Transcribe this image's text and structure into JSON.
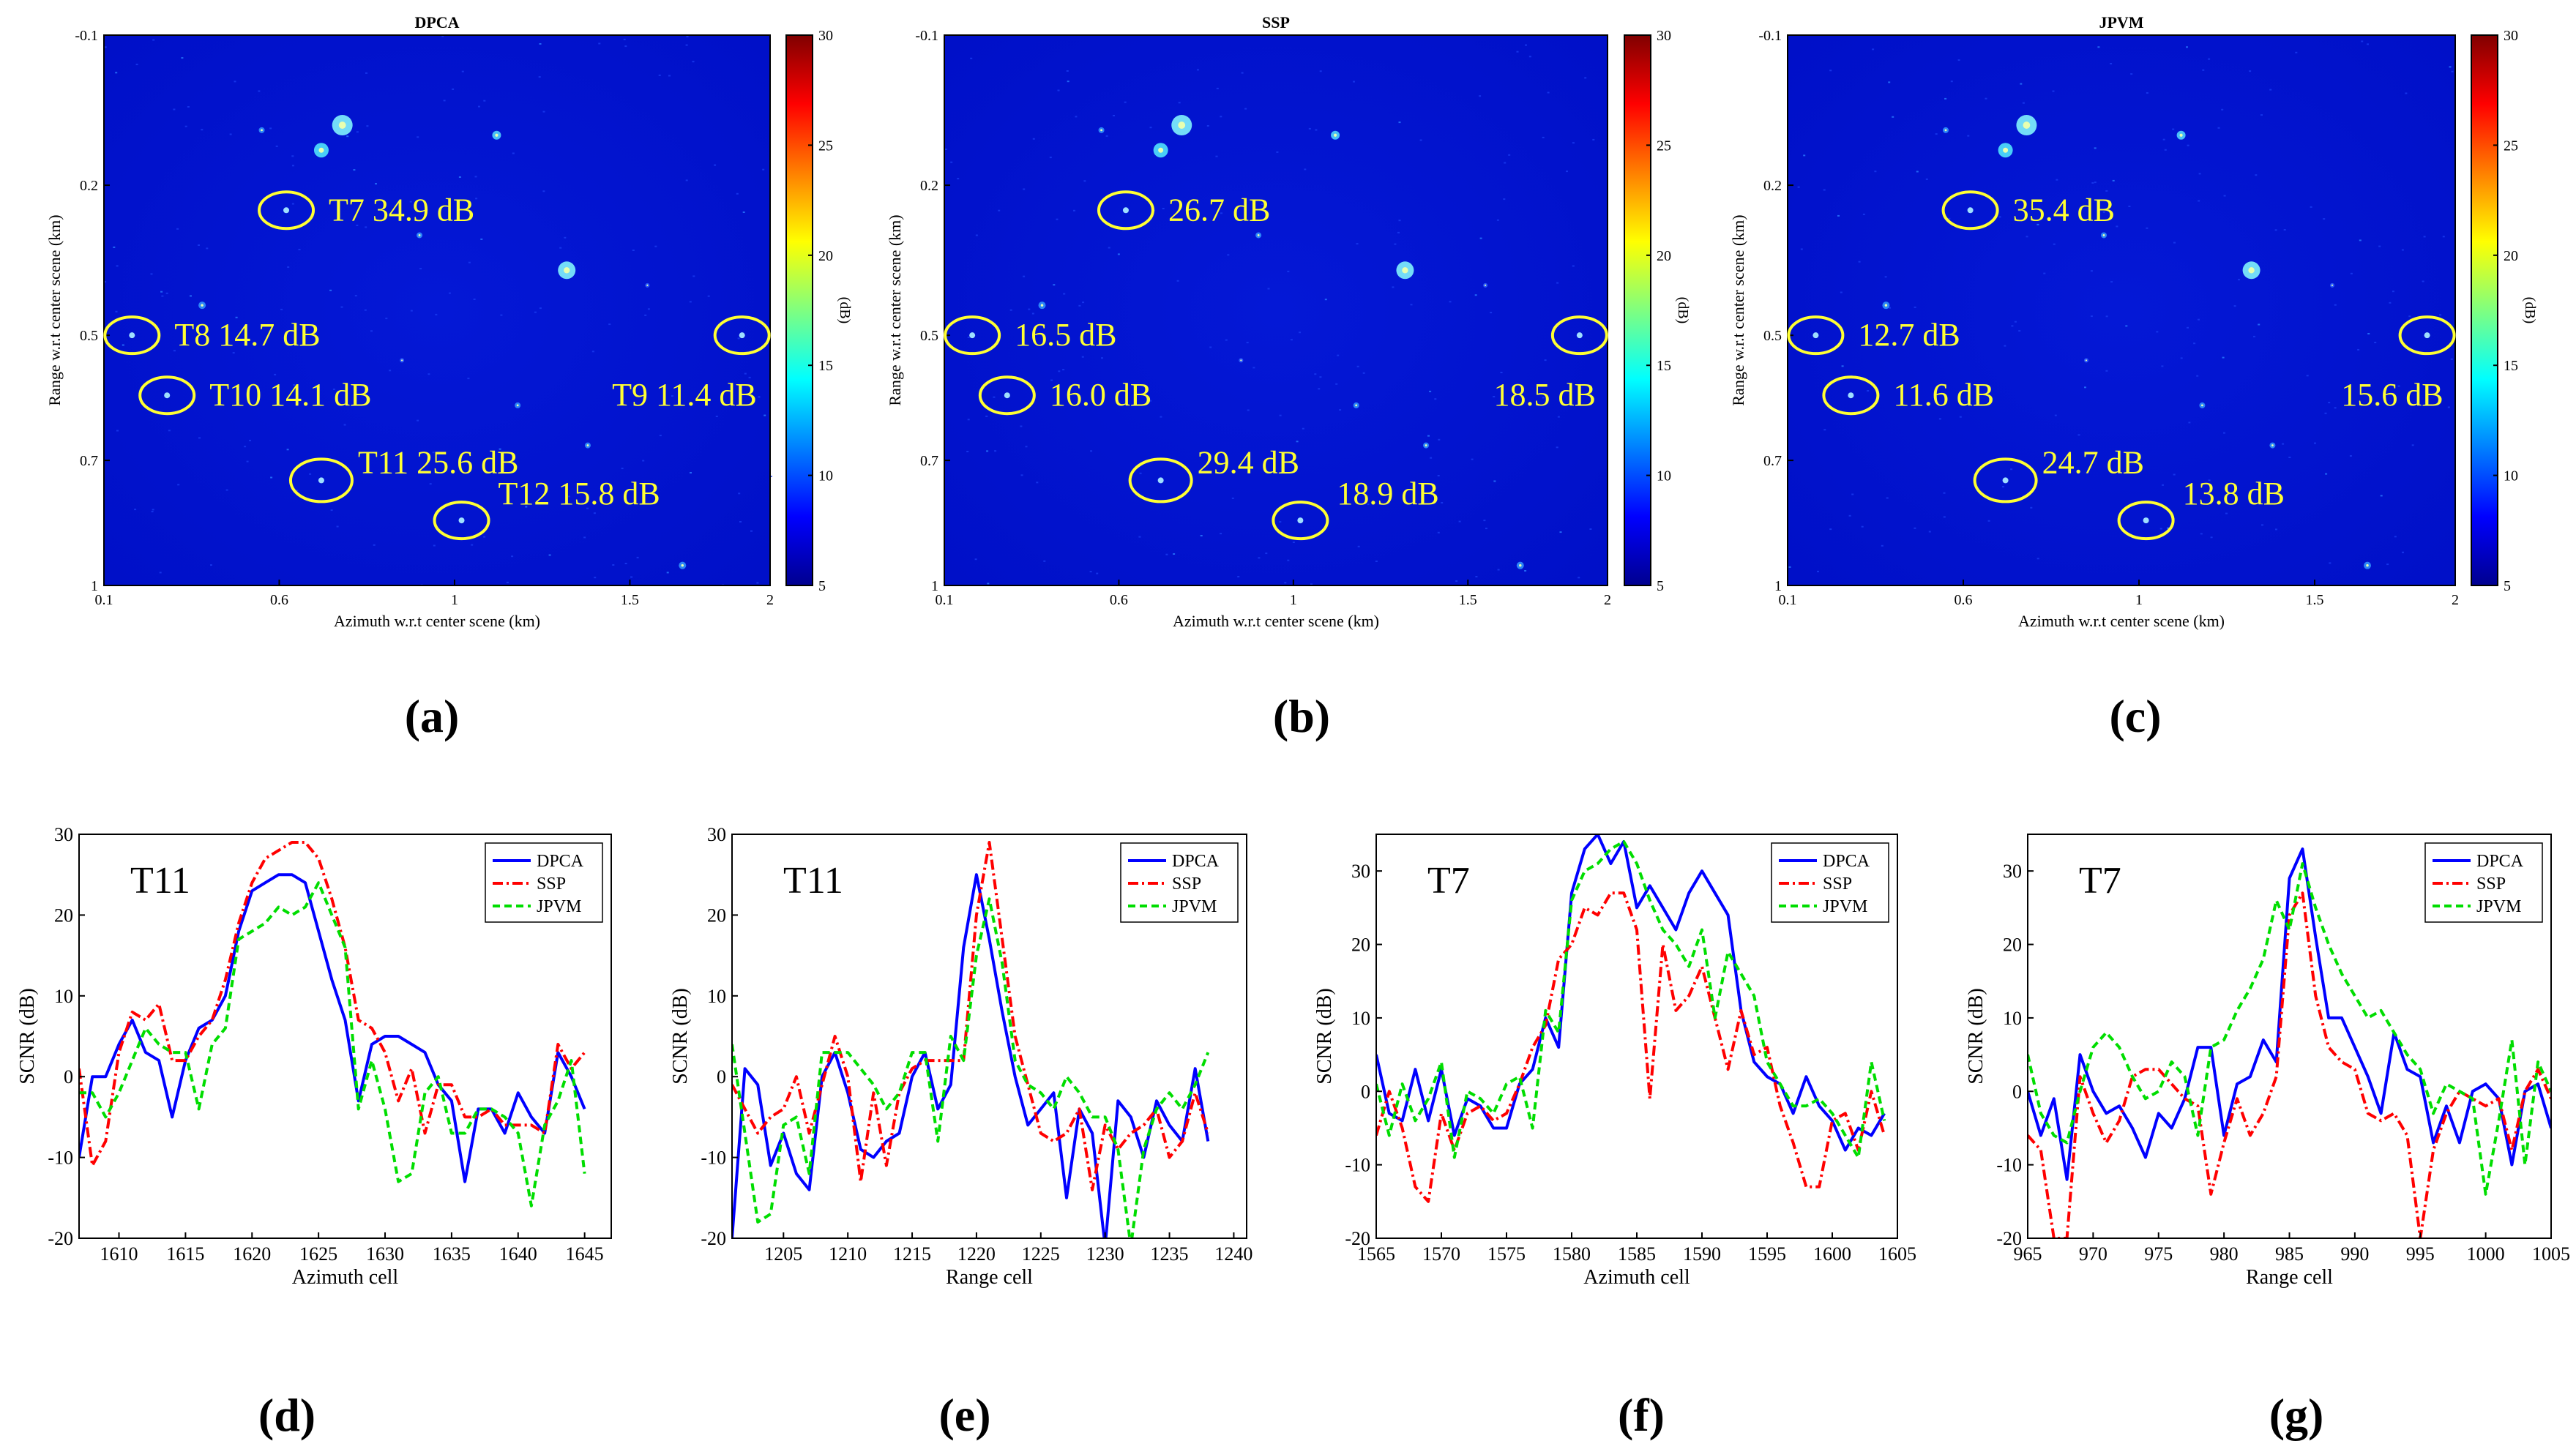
{
  "figure": {
    "panel_labels": [
      "(a)",
      "(b)",
      "(c)",
      "(d)",
      "(e)",
      "(f)",
      "(g)"
    ]
  },
  "chart_data": [
    {
      "id": "a",
      "type": "heatmap",
      "title": "DPCA",
      "xlabel": "Azimuth w.r.t center scene (km)",
      "ylabel": "Range w.r.t center scene (km)",
      "xlim": [
        0.1,
        2
      ],
      "ylim": [
        -0.1,
        1
      ],
      "xticks": [
        "0.1",
        "0.6",
        "1",
        "1.5",
        "2"
      ],
      "xtick_values": [
        0.1,
        0.6,
        1.1,
        1.6,
        2.0
      ],
      "yticks": [
        "-0.1",
        "0.2",
        "0.5",
        "0.7",
        "1"
      ],
      "ytick_values": [
        -0.1,
        0.2,
        0.5,
        0.75,
        1.0
      ],
      "colorbar": {
        "label": "(dB)",
        "min": 5,
        "max": 30,
        "ticks": [
          "5",
          "10",
          "15",
          "20",
          "25",
          "30"
        ]
      },
      "annotations": [
        {
          "target": "T7",
          "text": "T7 34.9 dB",
          "az": 0.62,
          "rg": 0.25
        },
        {
          "target": "T8",
          "text": "T8 14.7 dB",
          "az": 0.18,
          "rg": 0.5
        },
        {
          "target": "T10",
          "text": "T10 14.1 dB",
          "az": 0.28,
          "rg": 0.62
        },
        {
          "target": "T9",
          "text": "T9 11.4 dB",
          "az": 1.92,
          "rg": 0.5
        },
        {
          "target": "T11",
          "text": "T11 25.6 dB",
          "az": 0.72,
          "rg": 0.79
        },
        {
          "target": "T12",
          "text": "T12 15.8 dB",
          "az": 1.12,
          "rg": 0.87
        }
      ]
    },
    {
      "id": "b",
      "type": "heatmap",
      "title": "SSP",
      "xlabel": "Azimuth w.r.t center scene (km)",
      "ylabel": "Range w.r.t center scene (km)",
      "xlim": [
        0.1,
        2
      ],
      "ylim": [
        -0.1,
        1
      ],
      "xticks": [
        "0.1",
        "0.6",
        "1",
        "1.5",
        "2"
      ],
      "xtick_values": [
        0.1,
        0.6,
        1.1,
        1.6,
        2.0
      ],
      "yticks": [
        "-0.1",
        "0.2",
        "0.5",
        "0.7",
        "1"
      ],
      "ytick_values": [
        -0.1,
        0.2,
        0.5,
        0.75,
        1.0
      ],
      "colorbar": {
        "label": "(dB)",
        "min": 5,
        "max": 30,
        "ticks": [
          "5",
          "10",
          "15",
          "20",
          "25",
          "30"
        ]
      },
      "annotations": [
        {
          "target": "T7",
          "text": "26.7 dB",
          "az": 0.62,
          "rg": 0.25
        },
        {
          "target": "T8",
          "text": "16.5 dB",
          "az": 0.18,
          "rg": 0.5
        },
        {
          "target": "T10",
          "text": "16.0 dB",
          "az": 0.28,
          "rg": 0.62
        },
        {
          "target": "T9",
          "text": "18.5 dB",
          "az": 1.92,
          "rg": 0.5
        },
        {
          "target": "T11",
          "text": "29.4 dB",
          "az": 0.72,
          "rg": 0.79
        },
        {
          "target": "T12",
          "text": "18.9 dB",
          "az": 1.12,
          "rg": 0.87
        }
      ]
    },
    {
      "id": "c",
      "type": "heatmap",
      "title": "JPVM",
      "xlabel": "Azimuth w.r.t center scene (km)",
      "ylabel": "Range w.r.t center scene (km)",
      "xlim": [
        0.1,
        2
      ],
      "ylim": [
        -0.1,
        1
      ],
      "xticks": [
        "0.1",
        "0.6",
        "1",
        "1.5",
        "2"
      ],
      "xtick_values": [
        0.1,
        0.6,
        1.1,
        1.6,
        2.0
      ],
      "yticks": [
        "-0.1",
        "0.2",
        "0.5",
        "0.7",
        "1"
      ],
      "ytick_values": [
        -0.1,
        0.2,
        0.5,
        0.75,
        1.0
      ],
      "colorbar": {
        "label": "(dB)",
        "min": 5,
        "max": 30,
        "ticks": [
          "5",
          "10",
          "15",
          "20",
          "25",
          "30"
        ]
      },
      "annotations": [
        {
          "target": "T7",
          "text": "35.4 dB",
          "az": 0.62,
          "rg": 0.25
        },
        {
          "target": "T8",
          "text": "12.7 dB",
          "az": 0.18,
          "rg": 0.5
        },
        {
          "target": "T10",
          "text": "11.6 dB",
          "az": 0.28,
          "rg": 0.62
        },
        {
          "target": "T9",
          "text": "15.6 dB",
          "az": 1.92,
          "rg": 0.5
        },
        {
          "target": "T11",
          "text": "24.7 dB",
          "az": 0.72,
          "rg": 0.79
        },
        {
          "target": "T12",
          "text": "13.8 dB",
          "az": 1.12,
          "rg": 0.87
        }
      ]
    },
    {
      "id": "d",
      "type": "line",
      "annotation": "T11",
      "xlabel": "Azimuth cell",
      "ylabel": "SCNR (dB)",
      "xlim": [
        1607,
        1647
      ],
      "ylim": [
        -20,
        30
      ],
      "xticks": [
        1610,
        1615,
        1620,
        1625,
        1630,
        1635,
        1640,
        1645
      ],
      "yticks": [
        -20,
        -10,
        0,
        10,
        20,
        30
      ],
      "x_start": 1607,
      "series": [
        {
          "name": "DPCA",
          "color": "#0000ff",
          "dash": "",
          "values": [
            -10,
            0,
            0,
            4,
            7,
            3,
            2,
            -5,
            2,
            6,
            7,
            10,
            18,
            23,
            24,
            25,
            25,
            24,
            18,
            12,
            7,
            -3,
            4,
            5,
            5,
            4,
            3,
            -1,
            -3,
            -13,
            -4,
            -4,
            -7,
            -2,
            -5,
            -7,
            3,
            0,
            -4
          ]
        },
        {
          "name": "SSP",
          "color": "#ff0000",
          "dash": "14,5,3,5",
          "values": [
            1,
            -11,
            -8,
            3,
            8,
            7,
            9,
            2,
            2,
            5,
            7,
            12,
            19,
            24,
            27,
            28,
            29,
            29,
            27,
            22,
            16,
            7,
            6,
            3,
            -3,
            1,
            -7,
            -1,
            -1,
            -5,
            -5,
            -4,
            -6,
            -6,
            -6,
            -7,
            4,
            1,
            3
          ]
        },
        {
          "name": "JPVM",
          "color": "#00dd00",
          "dash": "10,6",
          "values": [
            -2,
            -2,
            -5,
            -2,
            2,
            6,
            4,
            3,
            3,
            -4,
            4,
            6,
            17,
            18,
            19,
            21,
            20,
            21,
            24,
            20,
            16,
            -4,
            2,
            -4,
            -13,
            -12,
            -2,
            0,
            -7,
            -7,
            -4,
            -4,
            -5,
            -7,
            -16,
            -6,
            -3,
            2,
            -12
          ]
        }
      ],
      "legend": [
        "DPCA",
        "SSP",
        "JPVM"
      ]
    },
    {
      "id": "e",
      "type": "line",
      "annotation": "T11",
      "xlabel": "Range cell",
      "ylabel": "SCNR (dB)",
      "xlim": [
        1201,
        1241
      ],
      "ylim": [
        -20,
        30
      ],
      "xticks": [
        1205,
        1210,
        1215,
        1220,
        1225,
        1230,
        1235,
        1240
      ],
      "yticks": [
        -20,
        -10,
        0,
        10,
        20,
        30
      ],
      "x_start": 1201,
      "series": [
        {
          "name": "DPCA",
          "color": "#0000ff",
          "dash": "",
          "values": [
            -20,
            1,
            -1,
            -11,
            -7,
            -12,
            -14,
            0,
            3,
            -2,
            -9,
            -10,
            -8,
            -7,
            0,
            3,
            -4,
            -1,
            16,
            25,
            17,
            8,
            0,
            -6,
            -4,
            -2,
            -15,
            -4,
            -7,
            -21,
            -3,
            -5,
            -10,
            -3,
            -6,
            -8,
            1,
            -8
          ]
        },
        {
          "name": "SSP",
          "color": "#ff0000",
          "dash": "14,5,3,5",
          "values": [
            -1,
            -4,
            -7,
            -5,
            -4,
            0,
            -7,
            -1,
            5,
            0,
            -13,
            -2,
            -11,
            -2,
            1,
            2,
            2,
            2,
            2,
            20,
            29,
            17,
            5,
            -1,
            -7,
            -8,
            -7,
            -4,
            -14,
            -6,
            -9,
            -7,
            -6,
            -4,
            -10,
            -8,
            -2,
            -7
          ]
        },
        {
          "name": "JPVM",
          "color": "#00dd00",
          "dash": "10,6",
          "values": [
            4,
            -7,
            -18,
            -17,
            -6,
            -5,
            -12,
            3,
            3,
            3,
            1,
            -1,
            -4,
            -2,
            3,
            3,
            -8,
            5,
            2,
            15,
            22,
            14,
            2,
            -1,
            -2,
            -4,
            0,
            -2,
            -5,
            -5,
            -9,
            -21,
            -9,
            -4,
            -2,
            -4,
            -1,
            3
          ]
        }
      ],
      "legend": [
        "DPCA",
        "SSP",
        "JPVM"
      ]
    },
    {
      "id": "f",
      "type": "line",
      "annotation": "T7",
      "xlabel": "Azimuth cell",
      "ylabel": "SCNR (dB)",
      "xlim": [
        1565,
        1605
      ],
      "ylim": [
        -20,
        35
      ],
      "xticks": [
        1565,
        1570,
        1575,
        1580,
        1585,
        1590,
        1595,
        1600,
        1605
      ],
      "yticks": [
        -20,
        -10,
        0,
        10,
        20,
        30
      ],
      "x_start": 1565,
      "series": [
        {
          "name": "DPCA",
          "color": "#0000ff",
          "dash": "",
          "values": [
            5,
            -3,
            -4,
            3,
            -4,
            3,
            -6,
            -1,
            -2,
            -5,
            -5,
            1,
            3,
            10,
            6,
            27,
            33,
            35,
            31,
            34,
            25,
            28,
            25,
            22,
            27,
            30,
            27,
            24,
            11,
            4,
            2,
            1,
            -3,
            2,
            -2,
            -4,
            -8,
            -5,
            -6,
            -3
          ]
        },
        {
          "name": "SSP",
          "color": "#ff0000",
          "dash": "14,5,3,5",
          "values": [
            -6,
            0,
            -5,
            -13,
            -15,
            -3,
            -8,
            -3,
            -2,
            -4,
            -3,
            1,
            6,
            9,
            18,
            20,
            25,
            24,
            27,
            27,
            22,
            -1,
            20,
            11,
            13,
            17,
            10,
            3,
            11,
            5,
            6,
            -2,
            -7,
            -13,
            -13,
            -4,
            -3,
            -8,
            0,
            -6
          ]
        },
        {
          "name": "JPVM",
          "color": "#00dd00",
          "dash": "10,6",
          "values": [
            1,
            -6,
            1,
            -4,
            -1,
            4,
            -9,
            0,
            -1,
            -3,
            1,
            2,
            -5,
            11,
            8,
            26,
            30,
            31,
            33,
            34,
            31,
            26,
            22,
            20,
            17,
            22,
            10,
            19,
            16,
            13,
            4,
            1,
            -2,
            -2,
            -1,
            -3,
            -6,
            -9,
            4,
            -4
          ]
        }
      ],
      "legend": [
        "DPCA",
        "SSP",
        "JPVM"
      ]
    },
    {
      "id": "g",
      "type": "line",
      "annotation": "T7",
      "xlabel": "Range cell",
      "ylabel": "SCNR (dB)",
      "xlim": [
        965,
        1005
      ],
      "ylim": [
        -20,
        35
      ],
      "xticks": [
        965,
        970,
        975,
        980,
        985,
        990,
        995,
        1000,
        1005
      ],
      "yticks": [
        -20,
        -10,
        0,
        10,
        20,
        30
      ],
      "x_start": 965,
      "series": [
        {
          "name": "DPCA",
          "color": "#0000ff",
          "dash": "",
          "values": [
            0,
            -6,
            -1,
            -12,
            5,
            0,
            -3,
            -2,
            -5,
            -9,
            -3,
            -5,
            -1,
            6,
            6,
            -6,
            1,
            2,
            7,
            4,
            29,
            33,
            21,
            10,
            10,
            6,
            2,
            -3,
            8,
            3,
            2,
            -7,
            -2,
            -7,
            0,
            1,
            -1,
            -10,
            0,
            1,
            -5
          ]
        },
        {
          "name": "SSP",
          "color": "#ff0000",
          "dash": "14,5,3,5",
          "values": [
            -6,
            -8,
            -20,
            -20,
            2,
            -3,
            -7,
            -4,
            2,
            3,
            3,
            1,
            -1,
            -2,
            -14,
            -7,
            -1,
            -6,
            -3,
            2,
            24,
            27,
            13,
            6,
            4,
            3,
            -3,
            -4,
            -3,
            -6,
            -20,
            -8,
            -3,
            0,
            -1,
            -2,
            -1,
            -8,
            0,
            3,
            -1
          ]
        },
        {
          "name": "JPVM",
          "color": "#00dd00",
          "dash": "10,6",
          "values": [
            5,
            -3,
            -6,
            -7,
            0,
            6,
            8,
            6,
            2,
            -1,
            0,
            4,
            2,
            -6,
            6,
            7,
            11,
            14,
            18,
            26,
            22,
            31,
            25,
            20,
            16,
            13,
            10,
            11,
            8,
            5,
            3,
            -3,
            1,
            0,
            -1,
            -14,
            -4,
            7,
            -10,
            4,
            0
          ]
        }
      ],
      "legend": [
        "DPCA",
        "SSP",
        "JPVM"
      ]
    }
  ]
}
